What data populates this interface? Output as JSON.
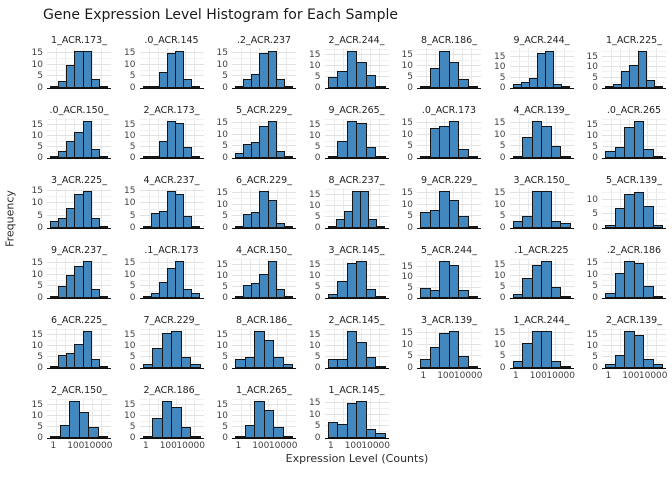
{
  "chart_data": {
    "type": "bar",
    "subtype": "faceted-histograms",
    "title": "Gene Expression Level Histogram for Each Sample",
    "xlabel": "Expression Level (Counts)",
    "ylabel": "Frequency",
    "x_scale": "log",
    "x_tick_labels": [
      "1",
      "100",
      "10000"
    ],
    "grid": true,
    "legend": "none",
    "layout": {
      "rows": 6,
      "cols": 7,
      "facet_count": 39
    },
    "colors": {
      "bar_fill": "#4287bd",
      "bar_edge": "#151515",
      "grid_major": "#e2e2e2",
      "grid_minor": "#f1f1f1",
      "axis_line": "#101010",
      "text": "#262626"
    },
    "facets": [
      {
        "sample": "1_ACR.173_",
        "frequencies": [
          1,
          3,
          10,
          16,
          16,
          4,
          1
        ],
        "y_ticks": [
          0,
          5,
          10,
          15
        ]
      },
      {
        "sample": ".0_ACR.145",
        "frequencies": [
          1,
          1,
          7,
          15,
          16,
          4,
          1
        ],
        "y_ticks": [
          0,
          5,
          10,
          15
        ]
      },
      {
        "sample": ".2_ACR.237",
        "frequencies": [
          1,
          4,
          6,
          15,
          16,
          4,
          1
        ],
        "y_ticks": [
          0,
          5,
          10,
          15
        ]
      },
      {
        "sample": "2_ACR.244_",
        "frequencies": [
          5,
          8,
          17,
          12,
          6,
          1
        ],
        "y_ticks": [
          0,
          5,
          10,
          15
        ]
      },
      {
        "sample": "8_ACR.186_",
        "frequencies": [
          1,
          9,
          17,
          12,
          4,
          1
        ],
        "y_ticks": [
          0,
          5,
          10,
          15
        ]
      },
      {
        "sample": "9_ACR.244_",
        "frequencies": [
          2,
          3,
          5,
          17,
          18,
          2,
          1
        ],
        "y_ticks": [
          0,
          5,
          10,
          15
        ]
      },
      {
        "sample": "1_ACR.225_",
        "frequencies": [
          1,
          2,
          8,
          11,
          18,
          4,
          1
        ],
        "y_ticks": [
          0,
          5,
          10,
          15
        ]
      },
      {
        "sample": ".0_ACR.150_",
        "frequencies": [
          1,
          3,
          8,
          12,
          17,
          4,
          1
        ],
        "y_ticks": [
          0,
          5,
          10,
          15
        ]
      },
      {
        "sample": "2_ACR.173_",
        "frequencies": [
          1,
          1,
          8,
          17,
          16,
          5,
          1
        ],
        "y_ticks": [
          0,
          5,
          10,
          15
        ]
      },
      {
        "sample": "5_ACR.229_",
        "frequencies": [
          2,
          6,
          7,
          14,
          16,
          3,
          1
        ],
        "y_ticks": [
          0,
          5,
          10,
          15
        ]
      },
      {
        "sample": "9_ACR.265_",
        "frequencies": [
          1,
          8,
          17,
          16,
          5,
          1
        ],
        "y_ticks": [
          0,
          5,
          10,
          15
        ]
      },
      {
        "sample": ".0_ACR.173",
        "frequencies": [
          1,
          13,
          14,
          16,
          4,
          1
        ],
        "y_ticks": [
          0,
          5,
          10,
          15
        ]
      },
      {
        "sample": "4_ACR.139_",
        "frequencies": [
          1,
          9,
          16,
          14,
          5,
          1
        ],
        "y_ticks": [
          0,
          5,
          10,
          15
        ]
      },
      {
        "sample": ".0_ACR.265",
        "frequencies": [
          3,
          5,
          14,
          17,
          4,
          1
        ],
        "y_ticks": [
          0,
          5,
          10,
          15
        ]
      },
      {
        "sample": "3_ACR.225_",
        "frequencies": [
          3,
          4,
          8,
          14,
          15,
          4,
          1
        ],
        "y_ticks": [
          0,
          5,
          10,
          15
        ]
      },
      {
        "sample": "4_ACR.237_",
        "frequencies": [
          1,
          6,
          7,
          15,
          14,
          5,
          1
        ],
        "y_ticks": [
          0,
          5,
          10,
          15
        ]
      },
      {
        "sample": "6_ACR.229_",
        "frequencies": [
          1,
          6,
          7,
          16,
          12,
          2,
          1
        ],
        "y_ticks": [
          0,
          5,
          10,
          15
        ]
      },
      {
        "sample": "8_ACR.237_",
        "frequencies": [
          1,
          4,
          8,
          17,
          17,
          4,
          1
        ],
        "y_ticks": [
          0,
          5,
          10,
          15
        ]
      },
      {
        "sample": "9_ACR.229_",
        "frequencies": [
          7,
          8,
          16,
          12,
          5,
          1
        ],
        "y_ticks": [
          0,
          5,
          10,
          15
        ]
      },
      {
        "sample": "3_ACR.150_",
        "frequencies": [
          3,
          5,
          16,
          16,
          3,
          2
        ],
        "y_ticks": [
          0,
          5,
          10,
          15
        ]
      },
      {
        "sample": "5_ACR.139_",
        "frequencies": [
          1,
          7,
          12,
          13,
          8,
          1
        ],
        "y_ticks": [
          0,
          5,
          10
        ]
      },
      {
        "sample": "9_ACR.237_",
        "frequencies": [
          1,
          5,
          10,
          14,
          16,
          4,
          1
        ],
        "y_ticks": [
          0,
          5,
          10,
          15
        ]
      },
      {
        "sample": ".1_ACR.173",
        "frequencies": [
          1,
          2,
          7,
          13,
          16,
          4,
          2
        ],
        "y_ticks": [
          0,
          5,
          10,
          15
        ]
      },
      {
        "sample": "4_ACR.150_",
        "frequencies": [
          1,
          6,
          7,
          11,
          17,
          4,
          1
        ],
        "y_ticks": [
          0,
          5,
          10,
          15
        ]
      },
      {
        "sample": "3_ACR.145_",
        "frequencies": [
          2,
          8,
          16,
          17,
          4,
          1
        ],
        "y_ticks": [
          0,
          5,
          10,
          15
        ]
      },
      {
        "sample": "5_ACR.244_",
        "frequencies": [
          5,
          4,
          18,
          16,
          4,
          1
        ],
        "y_ticks": [
          0,
          5,
          10,
          15
        ]
      },
      {
        "sample": ".1_ACR.225",
        "frequencies": [
          2,
          9,
          15,
          17,
          5,
          1
        ],
        "y_ticks": [
          0,
          5,
          10,
          15
        ]
      },
      {
        "sample": ".2_ACR.186",
        "frequencies": [
          2,
          11,
          16,
          15,
          5,
          1
        ],
        "y_ticks": [
          0,
          5,
          10,
          15
        ]
      },
      {
        "sample": "6_ACR.225_",
        "frequencies": [
          1,
          6,
          7,
          11,
          17,
          4,
          1
        ],
        "y_ticks": [
          0,
          5,
          10,
          15
        ]
      },
      {
        "sample": "7_ACR.229_",
        "frequencies": [
          2,
          9,
          16,
          17,
          5,
          2
        ],
        "y_ticks": [
          0,
          5,
          10,
          15
        ]
      },
      {
        "sample": "8_ACR.186_",
        "frequencies": [
          4,
          5,
          17,
          13,
          5,
          2
        ],
        "y_ticks": [
          0,
          5,
          10,
          15
        ]
      },
      {
        "sample": "2_ACR.145_",
        "frequencies": [
          4,
          4,
          17,
          12,
          5,
          1
        ],
        "y_ticks": [
          0,
          5,
          10,
          15
        ]
      },
      {
        "sample": "3_ACR.139_",
        "frequencies": [
          4,
          9,
          15,
          16,
          5,
          1
        ],
        "y_ticks": [
          0,
          5,
          10,
          15
        ]
      },
      {
        "sample": "1_ACR.244_",
        "frequencies": [
          3,
          11,
          16,
          16,
          3,
          1
        ],
        "y_ticks": [
          0,
          5,
          10,
          15
        ]
      },
      {
        "sample": "2_ACR.139_",
        "frequencies": [
          2,
          6,
          17,
          15,
          4,
          2
        ],
        "y_ticks": [
          0,
          5,
          10,
          15
        ]
      },
      {
        "sample": "2_ACR.150_",
        "frequencies": [
          1,
          6,
          17,
          12,
          5,
          1
        ],
        "y_ticks": [
          0,
          5,
          10,
          15
        ]
      },
      {
        "sample": "2_ACR.186_",
        "frequencies": [
          1,
          9,
          17,
          14,
          5,
          1
        ],
        "y_ticks": [
          0,
          5,
          10,
          15
        ]
      },
      {
        "sample": "1_ACR.265_",
        "frequencies": [
          1,
          6,
          17,
          13,
          5,
          1
        ],
        "y_ticks": [
          0,
          5,
          10,
          15
        ]
      },
      {
        "sample": "1_ACR.145_",
        "frequencies": [
          7,
          6,
          15,
          16,
          4,
          2
        ],
        "y_ticks": [
          0,
          5,
          10,
          15
        ]
      }
    ]
  }
}
